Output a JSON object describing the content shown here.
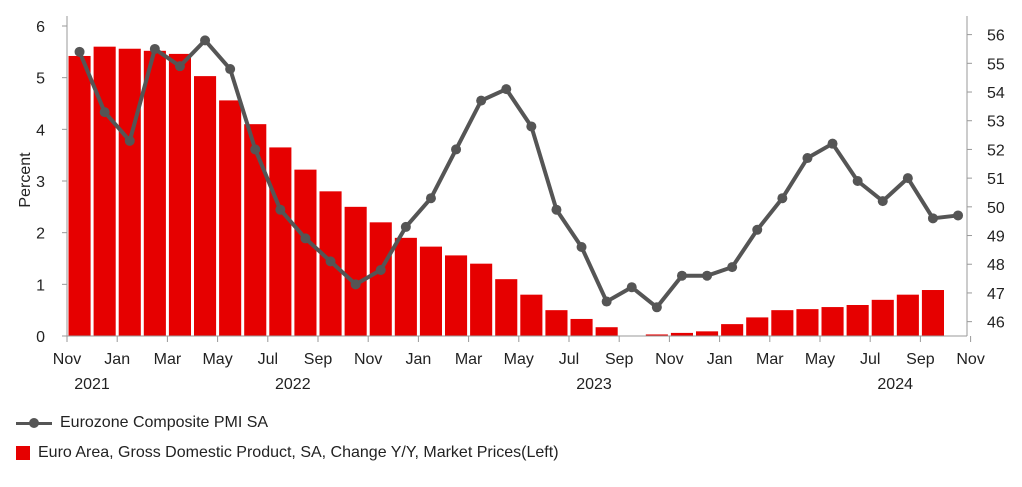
{
  "chart_data": {
    "type": "bar",
    "left_axis": {
      "label": "Percent",
      "ylim": [
        0,
        6
      ],
      "ticks": [
        "0",
        "1",
        "2",
        "3",
        "4",
        "5",
        "6"
      ]
    },
    "right_axis": {
      "ylim": [
        45.5,
        56.3
      ],
      "ticks": [
        "46",
        "47",
        "48",
        "49",
        "50",
        "51",
        "52",
        "53",
        "54",
        "55",
        "56"
      ]
    },
    "x_ticks": [
      {
        "label": "Nov",
        "year": "2021"
      },
      {
        "label": "Jan",
        "year": ""
      },
      {
        "label": "Mar",
        "year": ""
      },
      {
        "label": "May",
        "year": ""
      },
      {
        "label": "Jul",
        "year": "2022"
      },
      {
        "label": "Sep",
        "year": ""
      },
      {
        "label": "Nov",
        "year": ""
      },
      {
        "label": "Jan",
        "year": ""
      },
      {
        "label": "Mar",
        "year": ""
      },
      {
        "label": "May",
        "year": ""
      },
      {
        "label": "Jul",
        "year": "2023"
      },
      {
        "label": "Sep",
        "year": ""
      },
      {
        "label": "Nov",
        "year": ""
      },
      {
        "label": "Jan",
        "year": ""
      },
      {
        "label": "Mar",
        "year": ""
      },
      {
        "label": "May",
        "year": ""
      },
      {
        "label": "Jul",
        "year": "2024"
      },
      {
        "label": "Sep",
        "year": ""
      },
      {
        "label": "Nov",
        "year": ""
      }
    ],
    "months": [
      "2021-11",
      "2021-12",
      "2022-01",
      "2022-02",
      "2022-03",
      "2022-04",
      "2022-05",
      "2022-06",
      "2022-07",
      "2022-08",
      "2022-09",
      "2022-10",
      "2022-11",
      "2022-12",
      "2023-01",
      "2023-02",
      "2023-03",
      "2023-04",
      "2023-05",
      "2023-06",
      "2023-07",
      "2023-08",
      "2023-09",
      "2023-10",
      "2023-11",
      "2023-12",
      "2024-01",
      "2024-02",
      "2024-03",
      "2024-04",
      "2024-05",
      "2024-06",
      "2024-07",
      "2024-08",
      "2024-09",
      "2024-10"
    ],
    "series": [
      {
        "name": "Euro Area, Gross Domestic Product, SA, Change Y/Y, Market Prices(Left)",
        "kind": "bar",
        "axis": "left",
        "color": "#e60000",
        "values": [
          5.42,
          5.6,
          5.56,
          5.52,
          5.46,
          5.03,
          4.56,
          4.1,
          3.65,
          3.22,
          2.8,
          2.5,
          2.2,
          1.9,
          1.73,
          1.56,
          1.4,
          1.1,
          0.8,
          0.5,
          0.33,
          0.17,
          0.0,
          0.03,
          0.06,
          0.09,
          0.23,
          0.36,
          0.5,
          0.52,
          0.56,
          0.6,
          0.7,
          0.8,
          0.89
        ]
      },
      {
        "name": "Eurozone Composite PMI SA",
        "kind": "line",
        "axis": "right",
        "color": "#555555",
        "values": [
          55.4,
          53.3,
          52.3,
          55.5,
          54.9,
          55.8,
          54.8,
          52.0,
          49.9,
          48.9,
          48.1,
          47.3,
          47.8,
          49.3,
          50.3,
          52.0,
          53.7,
          54.1,
          52.8,
          49.9,
          48.6,
          46.7,
          47.2,
          46.5,
          47.6,
          47.6,
          47.9,
          49.2,
          50.3,
          51.7,
          52.2,
          50.9,
          50.2,
          51.0,
          49.6,
          49.7
        ]
      }
    ],
    "legend": [
      {
        "label": "Eurozone Composite PMI SA",
        "kind": "line"
      },
      {
        "label": "Euro Area, Gross Domestic Product, SA, Change Y/Y, Market Prices(Left)",
        "kind": "bar"
      }
    ]
  }
}
